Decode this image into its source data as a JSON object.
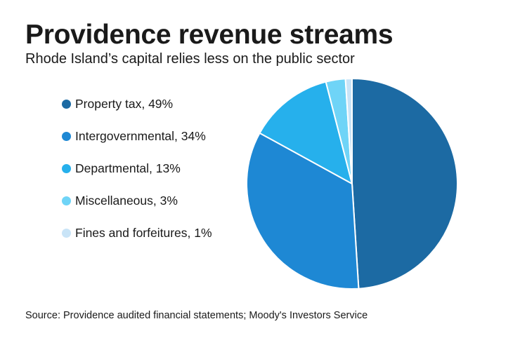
{
  "title": "Providence revenue streams",
  "subtitle": "Rhode Island’s capital relies less on the public sector",
  "source": "Source: Providence audited financial statements; Moody's Investors Service",
  "chart_data": {
    "type": "pie",
    "title": "Providence revenue streams",
    "subtitle": "Rhode Island’s capital relies less on the public sector",
    "legend_position": "left",
    "slices": [
      {
        "label": "Property tax, 49%",
        "name": "Property tax",
        "value": 49,
        "color": "#1c6aa3"
      },
      {
        "label": "Intergovernmental, 34%",
        "name": "Intergovernmental",
        "value": 34,
        "color": "#1e88d4"
      },
      {
        "label": "Departmental, 13%",
        "name": "Departmental",
        "value": 13,
        "color": "#26b0ec"
      },
      {
        "label": "Miscellaneous, 3%",
        "name": "Miscellaneous",
        "value": 3,
        "color": "#6fd4f7"
      },
      {
        "label": "Fines and forfeitures, 1%",
        "name": "Fines and forfeitures",
        "value": 1,
        "color": "#c9e4f7"
      }
    ]
  }
}
